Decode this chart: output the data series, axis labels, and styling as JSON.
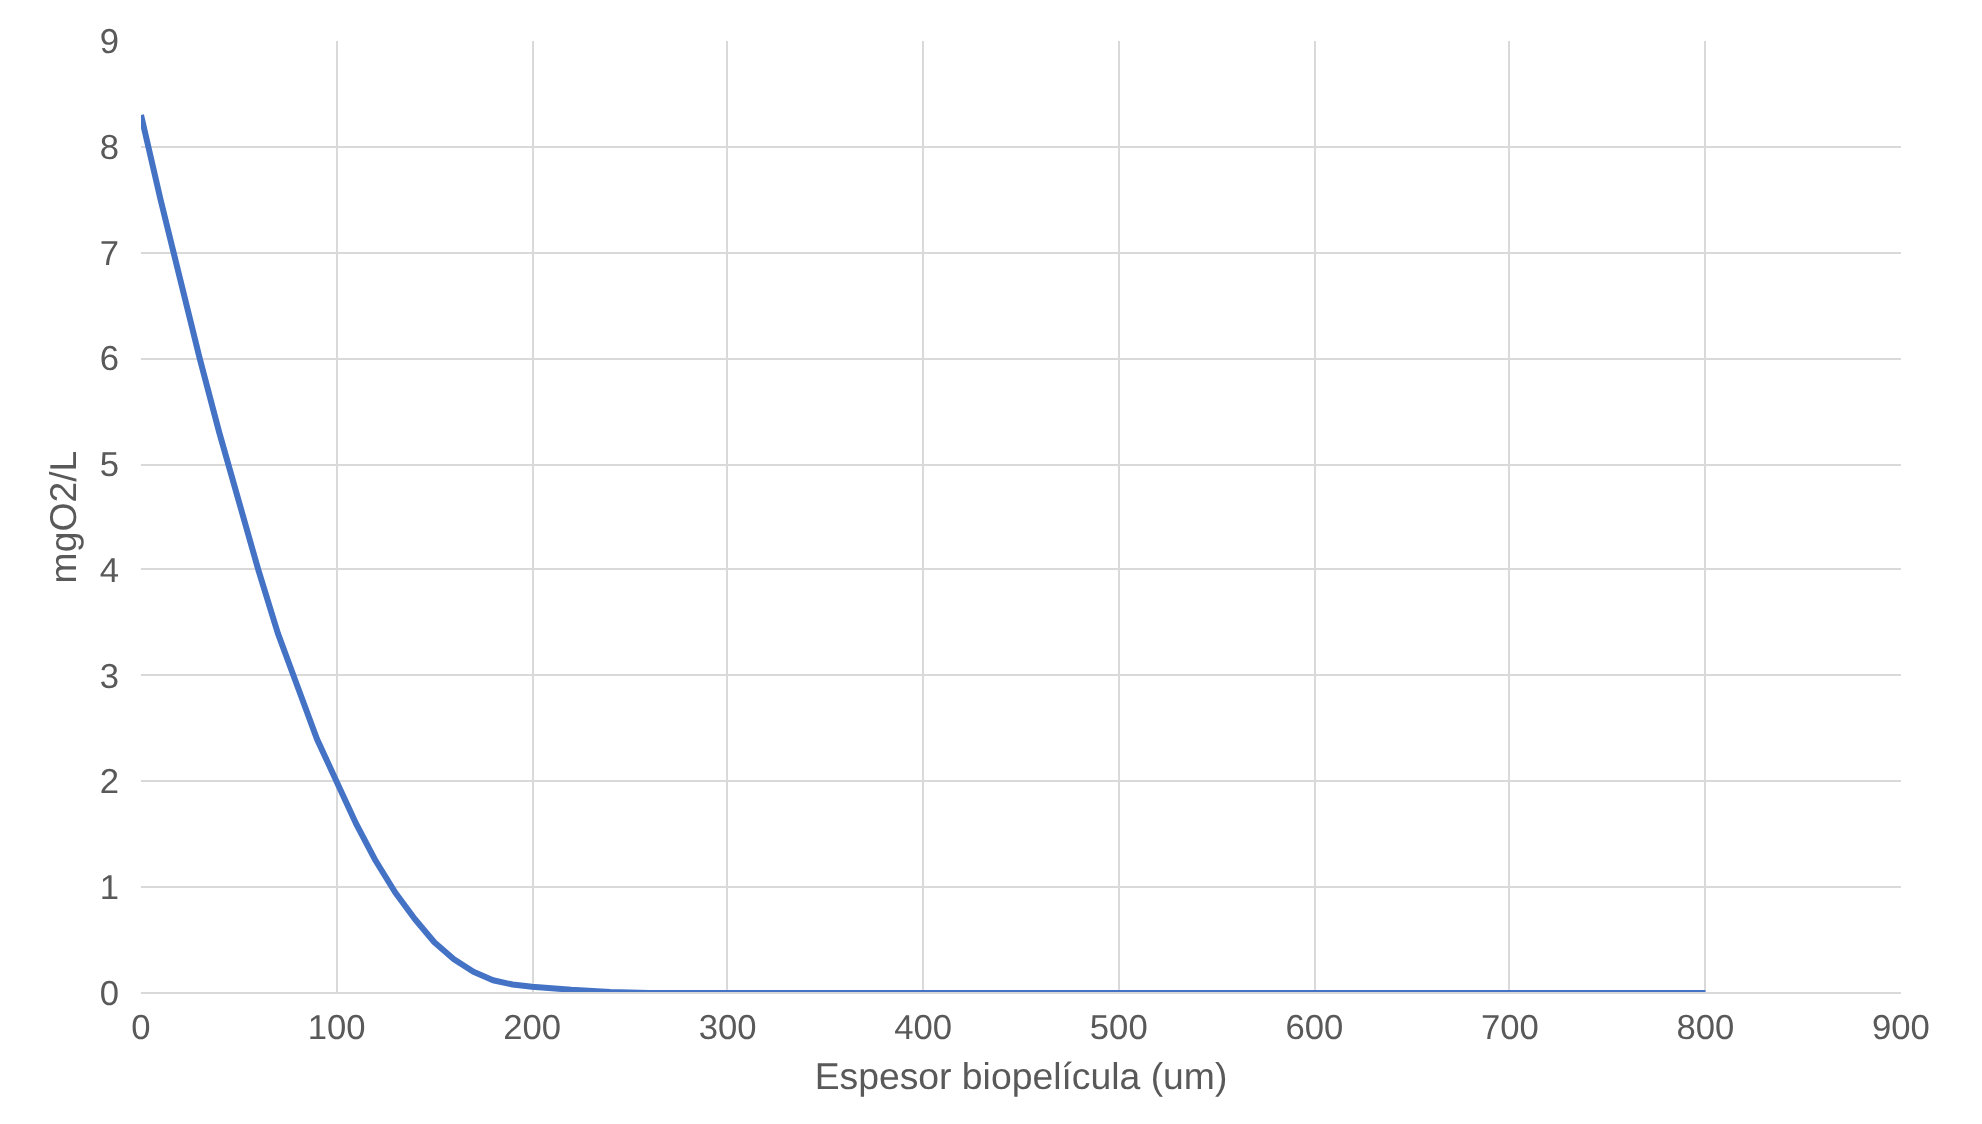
{
  "chart_data": {
    "type": "line",
    "xlabel": "Espesor biopelícula (um)",
    "ylabel": "mgO2/L",
    "x": [
      0,
      10,
      20,
      30,
      40,
      50,
      60,
      70,
      80,
      90,
      100,
      110,
      120,
      130,
      140,
      150,
      160,
      170,
      180,
      190,
      200,
      220,
      240,
      260,
      300,
      400,
      500,
      600,
      700,
      800
    ],
    "series": [
      {
        "color": "#4472c4",
        "values": [
          8.3,
          7.5,
          6.75,
          6.0,
          5.3,
          4.65,
          4.0,
          3.4,
          2.9,
          2.4,
          2.0,
          1.6,
          1.25,
          0.95,
          0.7,
          0.48,
          0.32,
          0.2,
          0.12,
          0.08,
          0.06,
          0.03,
          0.01,
          0,
          0,
          0,
          0,
          0,
          0,
          0
        ]
      }
    ],
    "xlim": [
      0,
      900
    ],
    "xticks": [
      0,
      100,
      200,
      300,
      400,
      500,
      600,
      700,
      800,
      900
    ],
    "ylim": [
      0,
      9
    ],
    "yticks": [
      0,
      1,
      2,
      3,
      4,
      5,
      6,
      7,
      8,
      9
    ],
    "grid": true,
    "marker": "none",
    "line_style": "solid"
  }
}
